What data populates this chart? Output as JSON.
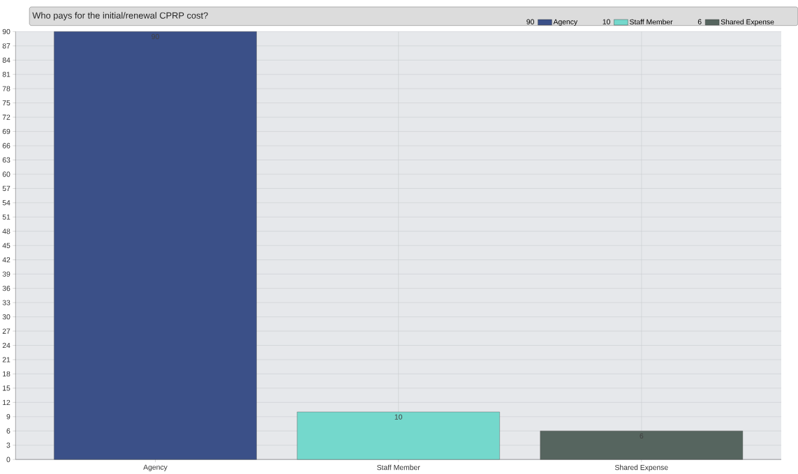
{
  "chart_data": {
    "type": "bar",
    "title": "Who pays for the initial/renewal CPRP cost?",
    "categories": [
      "Agency",
      "Staff Member",
      "Shared Expense"
    ],
    "series": [
      {
        "name": "Agency",
        "color": "#3b5088",
        "values": [
          90,
          null,
          null
        ],
        "value_labels": [
          "90",
          null,
          null
        ]
      },
      {
        "name": "Staff Member",
        "color": "#74d8cc",
        "values": [
          null,
          10,
          null
        ],
        "value_labels": [
          null,
          "10",
          null
        ]
      },
      {
        "name": "Shared Expense",
        "color": "#56655f",
        "values": [
          null,
          null,
          6
        ],
        "value_labels": [
          null,
          null,
          "6"
        ]
      }
    ],
    "ylim": [
      0,
      90
    ],
    "yticks": [
      0,
      3,
      6,
      9,
      12,
      15,
      18,
      21,
      24,
      27,
      30,
      33,
      36,
      39,
      42,
      45,
      48,
      51,
      54,
      57,
      60,
      63,
      66,
      69,
      72,
      75,
      78,
      81,
      84,
      87,
      90
    ],
    "grid": true,
    "legend": "top right"
  }
}
